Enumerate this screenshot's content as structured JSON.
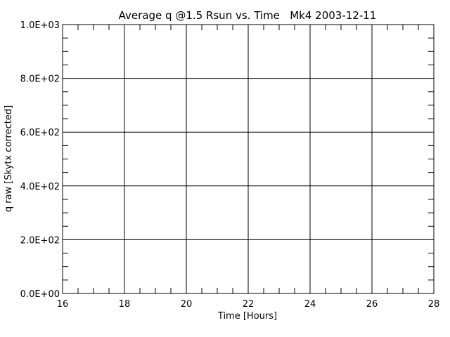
{
  "chart_data": {
    "type": "line",
    "title": "Average q @1.5 Rsun vs. Time   Mk4 2003-12-11",
    "x_label": "Time [Hours]",
    "y_label": "q raw [Skytx corrected]",
    "xlim": [
      16,
      28
    ],
    "xticks": [
      16,
      18,
      20,
      22,
      24,
      26,
      28
    ],
    "ylim": [
      0,
      1000
    ],
    "yticks": [
      {
        "value": 0,
        "label": "0.0E+00"
      },
      {
        "value": 200,
        "label": "2.0E+02"
      },
      {
        "value": 400,
        "label": "4.0E+02"
      },
      {
        "value": 600,
        "label": "6.0E+02"
      },
      {
        "value": 800,
        "label": "8.0E+02"
      },
      {
        "value": 1000,
        "label": "1.0E+03"
      }
    ],
    "xminor": 4,
    "yminor": 4,
    "grid": true,
    "color": "#000000",
    "series": []
  }
}
